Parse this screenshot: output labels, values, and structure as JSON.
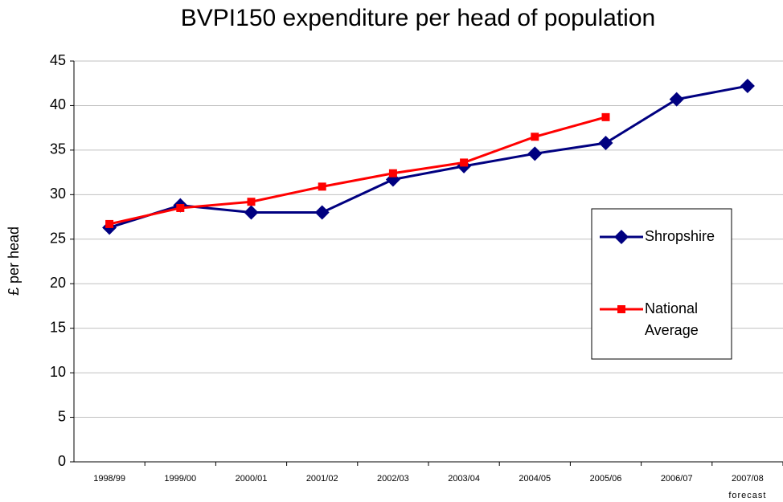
{
  "chart_data": {
    "type": "line",
    "title": "BVPI150 expenditure per head of population",
    "ylabel": "£ per head",
    "categories": [
      "1998/99",
      "1999/00",
      "2000/01",
      "2001/02",
      "2002/03",
      "2003/04",
      "2004/05",
      "2005/06",
      "2006/07",
      "2007/08"
    ],
    "annotations": [
      "forecast"
    ],
    "series": [
      {
        "name": "Shropshire",
        "color": "#000080",
        "marker": "diamond",
        "values": [
          26.3,
          28.8,
          28.0,
          28.0,
          31.7,
          33.2,
          34.6,
          35.8,
          40.7,
          42.2
        ]
      },
      {
        "name": "National Average",
        "color": "#ff0000",
        "marker": "square",
        "values": [
          26.7,
          28.5,
          29.2,
          30.9,
          32.4,
          33.6,
          36.5,
          38.7,
          null,
          null
        ]
      }
    ],
    "ylim": [
      0,
      45
    ],
    "yticks": [
      0,
      5,
      10,
      15,
      20,
      25,
      30,
      35,
      40,
      45
    ],
    "grid": true,
    "legend": "right"
  }
}
